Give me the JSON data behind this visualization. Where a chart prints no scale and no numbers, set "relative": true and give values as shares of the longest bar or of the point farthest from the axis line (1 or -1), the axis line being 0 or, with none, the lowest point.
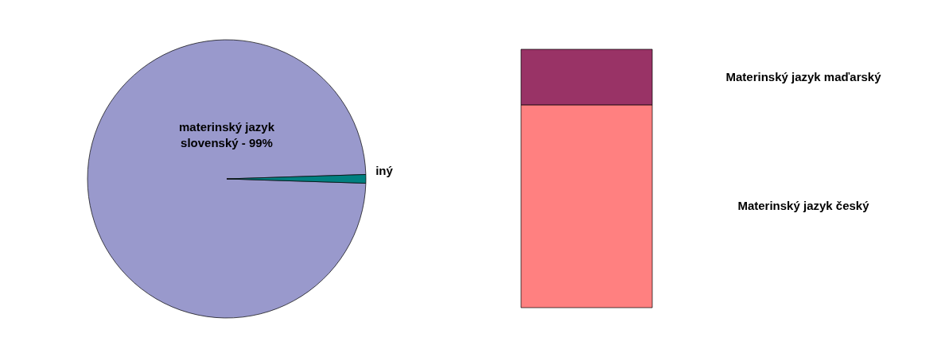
{
  "chart_data": [
    {
      "type": "pie",
      "categories": [
        "materinský jazyk slovenský -",
        "iný"
      ],
      "values": [
        99,
        1
      ],
      "colors": [
        "#9999cc",
        "#008080"
      ],
      "value_labels": [
        "99%",
        null
      ],
      "legend": false
    },
    {
      "type": "bar",
      "stacked": true,
      "relative": true,
      "categories": [
        null
      ],
      "legend": false,
      "series": [
        {
          "name": "Materinský jazyk český",
          "color": "#ff8080",
          "values": [
            0.785
          ]
        },
        {
          "name": "Materinský jazyk maďarský",
          "color": "#993366",
          "values": [
            0.215
          ]
        }
      ]
    }
  ]
}
